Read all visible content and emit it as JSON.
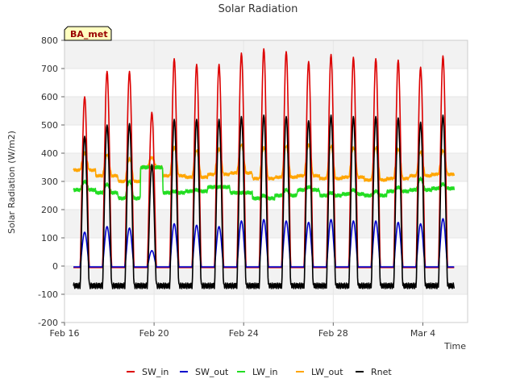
{
  "chart_data": {
    "type": "line",
    "title": "Solar Radiation",
    "xlabel": "Time",
    "ylabel": "Solar Radiation (W/m2)",
    "ylim": [
      -200,
      800
    ],
    "y_ticks": [
      -200,
      -100,
      0,
      100,
      200,
      300,
      400,
      500,
      600,
      700,
      800
    ],
    "y_tick_labels": [
      "-200",
      "-100",
      "0",
      "100",
      "200",
      "300",
      "400",
      "500",
      "600",
      "700",
      "800"
    ],
    "xlim": [
      0,
      18
    ],
    "x_ticks": [
      0,
      4,
      8,
      12,
      16
    ],
    "x_tick_labels": [
      "Feb 16",
      "Feb 20",
      "Feb 24",
      "Feb 28",
      "Mar 4"
    ],
    "x_unit": "days from Feb 16",
    "grid": true,
    "legend_position": "bottom-center",
    "badge": {
      "text": "BA_met",
      "bg": "#ffffc0",
      "text_color": "#990000"
    },
    "days": [
      0,
      1,
      2,
      3,
      4,
      5,
      6,
      7,
      8,
      9,
      10,
      11,
      12,
      13,
      14,
      15,
      16
    ],
    "series": [
      {
        "name": "SW_in",
        "color": "#dd0000",
        "values": [
          600,
          690,
          690,
          545,
          735,
          715,
          715,
          755,
          770,
          760,
          725,
          750,
          740,
          735,
          730,
          705,
          745
        ]
      },
      {
        "name": "SW_out",
        "color": "#0000cc",
        "values": [
          120,
          140,
          135,
          55,
          150,
          145,
          140,
          160,
          165,
          160,
          155,
          165,
          160,
          160,
          155,
          150,
          168
        ]
      },
      {
        "name": "LW_in",
        "color": "#22dd22",
        "values": [
          300,
          290,
          300,
          350,
          265,
          270,
          280,
          260,
          250,
          270,
          280,
          260,
          270,
          265,
          280,
          310,
          290
        ]
      },
      {
        "name": "LW_out",
        "color": "#ffa500",
        "values": [
          400,
          395,
          380,
          385,
          420,
          410,
          415,
          430,
          420,
          425,
          430,
          425,
          420,
          420,
          415,
          405,
          410
        ]
      },
      {
        "name": "Rnet",
        "color": "#000000",
        "values": [
          380,
          420,
          425,
          280,
          440,
          440,
          440,
          450,
          455,
          450,
          435,
          455,
          450,
          450,
          445,
          430,
          455
        ]
      }
    ],
    "night_values": {
      "SW_in": -5,
      "SW_out": -3,
      "Rnet": -70,
      "LW_in_base": [
        270,
        260,
        240,
        350,
        260,
        265,
        280,
        260,
        240,
        250,
        270,
        250,
        255,
        250,
        265,
        270,
        275
      ],
      "LW_out_base": [
        340,
        320,
        300,
        350,
        320,
        315,
        325,
        330,
        310,
        315,
        320,
        310,
        315,
        305,
        310,
        320,
        325
      ]
    }
  }
}
